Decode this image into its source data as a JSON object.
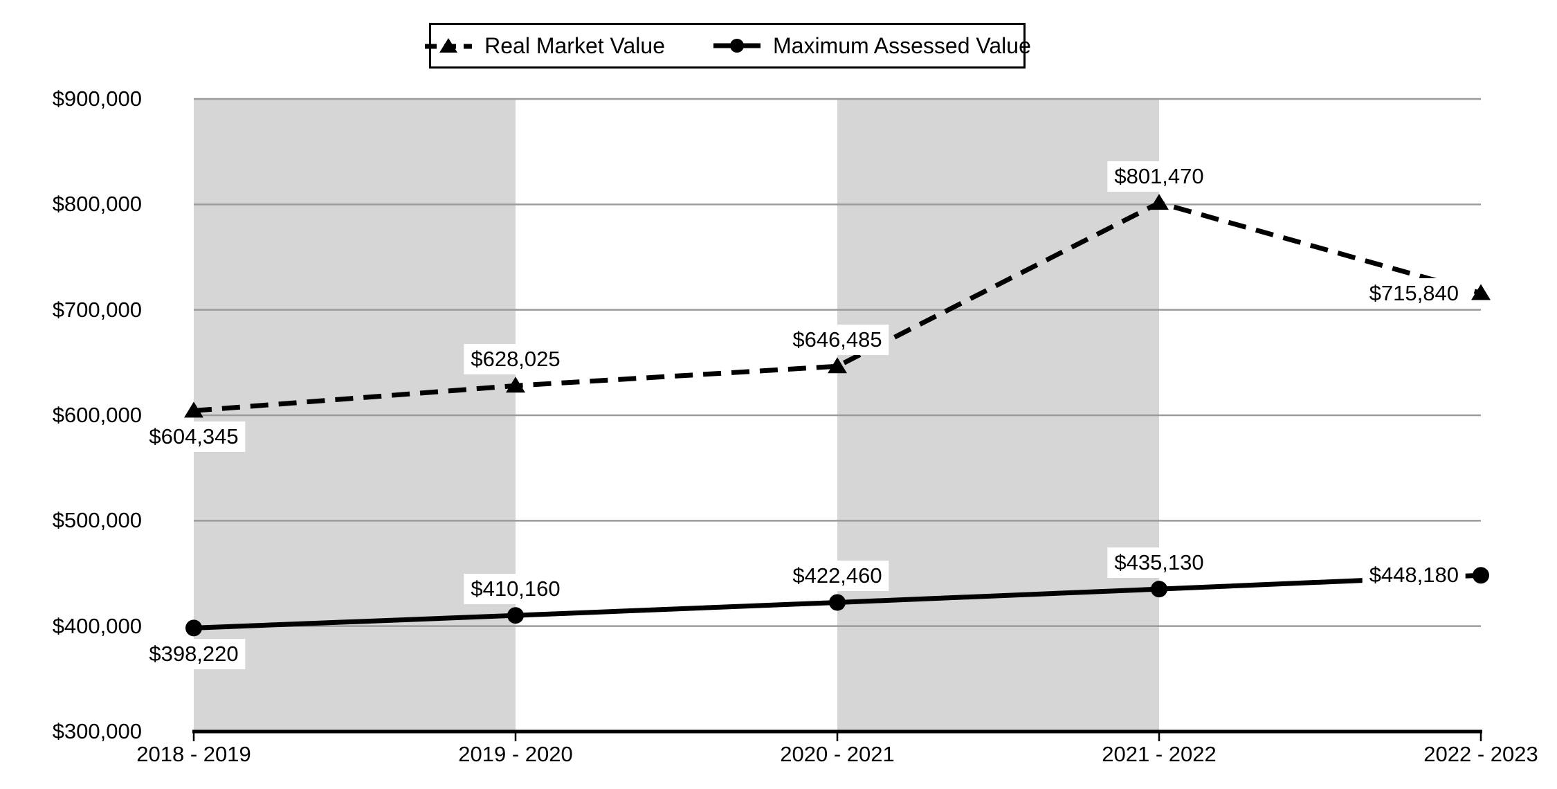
{
  "chart_data": {
    "type": "line",
    "title": "",
    "categories": [
      "2018 - 2019",
      "2019 - 2020",
      "2020 - 2021",
      "2021 - 2022",
      "2022 - 2023"
    ],
    "series": [
      {
        "name": "Real Market Value",
        "line_style": "dashed",
        "marker": "triangle",
        "values": [
          604345,
          628025,
          646485,
          801470,
          715840
        ],
        "data_labels": [
          "$604,345",
          "$628,025",
          "$646,485",
          "$801,470",
          "$715,840"
        ]
      },
      {
        "name": "Maximum Assessed Value",
        "line_style": "solid",
        "marker": "circle",
        "values": [
          398220,
          410160,
          422460,
          435130,
          448180
        ],
        "data_labels": [
          "$398,220",
          "$410,160",
          "$422,460",
          "$435,130",
          "$448,180"
        ]
      }
    ],
    "y_axis": {
      "min": 300000,
      "max": 900000,
      "step": 100000,
      "tick_labels": [
        "$300,000",
        "$400,000",
        "$500,000",
        "$600,000",
        "$700,000",
        "$800,000",
        "$900,000"
      ]
    },
    "legend": {
      "position": "top"
    },
    "grid": true,
    "plot_bands": {
      "intervals": [
        [
          0,
          1
        ],
        [
          2,
          3
        ]
      ]
    },
    "colors": {
      "series": "#000000",
      "band": "#d6d6d6",
      "gridline": "#9b9b9b",
      "axis": "#000000",
      "background": "#ffffff",
      "label_background": "#ffffff"
    }
  }
}
